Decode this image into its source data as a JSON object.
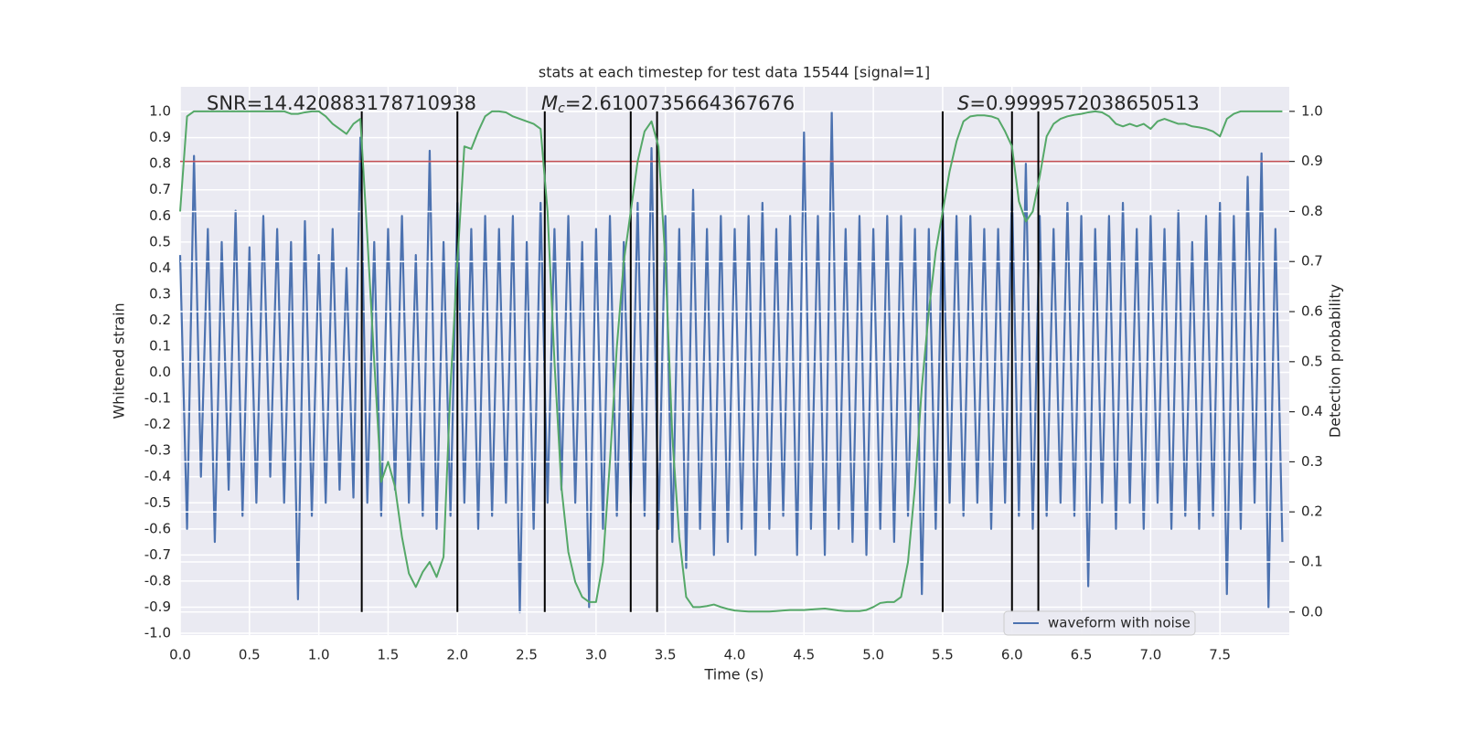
{
  "chart_data": {
    "type": "line",
    "title": "stats at each timestep for test data 15544 [signal=1]",
    "xlabel": "Time (s)",
    "ylabel": "Whitened strain",
    "y2label": "Detection probability",
    "annotations": [
      {
        "text": "SNR=14.420883178710938"
      },
      {
        "symbol": "M",
        "subscript": "c",
        "text": "=2.6100735664367676"
      },
      {
        "symbol": "S",
        "text": "=0.9999572038650513"
      }
    ],
    "x": [
      0.0,
      0.05,
      0.1,
      0.15,
      0.2,
      0.25,
      0.3,
      0.35,
      0.4,
      0.45,
      0.5,
      0.55,
      0.6,
      0.65,
      0.7,
      0.75,
      0.8,
      0.85,
      0.9,
      0.95,
      1.0,
      1.05,
      1.1,
      1.15,
      1.2,
      1.25,
      1.3,
      1.35,
      1.4,
      1.45,
      1.5,
      1.55,
      1.6,
      1.65,
      1.7,
      1.75,
      1.8,
      1.85,
      1.9,
      1.95,
      2.0,
      2.05,
      2.1,
      2.15,
      2.2,
      2.25,
      2.3,
      2.35,
      2.4,
      2.45,
      2.5,
      2.55,
      2.6,
      2.65,
      2.7,
      2.75,
      2.8,
      2.85,
      2.9,
      2.95,
      3.0,
      3.05,
      3.1,
      3.15,
      3.2,
      3.25,
      3.3,
      3.35,
      3.4,
      3.45,
      3.5,
      3.55,
      3.6,
      3.65,
      3.7,
      3.75,
      3.8,
      3.85,
      3.9,
      3.95,
      4.0,
      4.05,
      4.1,
      4.15,
      4.2,
      4.25,
      4.3,
      4.35,
      4.4,
      4.45,
      4.5,
      4.55,
      4.6,
      4.65,
      4.7,
      4.75,
      4.8,
      4.85,
      4.9,
      4.95,
      5.0,
      5.05,
      5.1,
      5.15,
      5.2,
      5.25,
      5.3,
      5.35,
      5.4,
      5.45,
      5.5,
      5.55,
      5.6,
      5.65,
      5.7,
      5.75,
      5.8,
      5.85,
      5.9,
      5.95,
      6.0,
      6.05,
      6.1,
      6.15,
      6.2,
      6.25,
      6.3,
      6.35,
      6.4,
      6.45,
      6.5,
      6.55,
      6.6,
      6.65,
      6.7,
      6.75,
      6.8,
      6.85,
      6.9,
      6.95,
      7.0,
      7.05,
      7.1,
      7.15,
      7.2,
      7.25,
      7.3,
      7.35,
      7.4,
      7.45,
      7.5,
      7.55,
      7.6,
      7.65,
      7.7,
      7.75,
      7.8,
      7.85,
      7.9,
      7.95
    ],
    "series": [
      {
        "name": "waveform with noise",
        "color": "#4c72b0",
        "axis": "y",
        "values": [
          0.45,
          -0.6,
          0.83,
          -0.4,
          0.55,
          -0.65,
          0.5,
          -0.45,
          0.62,
          -0.55,
          0.48,
          -0.5,
          0.6,
          -0.4,
          0.55,
          -0.5,
          0.5,
          -0.87,
          0.58,
          -0.55,
          0.45,
          -0.5,
          0.55,
          -0.45,
          0.4,
          -0.48,
          0.9,
          -0.5,
          0.5,
          -0.55,
          0.55,
          -0.45,
          0.6,
          -0.5,
          0.45,
          -0.55,
          0.85,
          -0.6,
          0.5,
          -0.55,
          0.65,
          -0.5,
          0.55,
          -0.6,
          0.6,
          -0.55,
          0.55,
          -0.5,
          0.6,
          -0.92,
          0.5,
          -0.6,
          0.65,
          -0.5,
          0.55,
          -0.45,
          0.6,
          -0.5,
          0.5,
          -0.9,
          0.55,
          -0.6,
          0.6,
          -0.55,
          0.5,
          -0.5,
          0.65,
          -0.55,
          0.86,
          -0.6,
          0.6,
          -0.65,
          0.55,
          -0.75,
          0.7,
          -0.6,
          0.55,
          -0.7,
          0.6,
          -0.65,
          0.55,
          -0.6,
          0.6,
          -0.7,
          0.65,
          -0.6,
          0.55,
          -0.55,
          0.6,
          -0.7,
          0.92,
          -0.6,
          0.6,
          -0.7,
          1.0,
          -0.6,
          0.55,
          -0.65,
          0.6,
          -0.7,
          0.55,
          -0.6,
          0.6,
          -0.65,
          0.6,
          -0.55,
          0.55,
          -0.85,
          0.55,
          -0.6,
          0.65,
          -0.5,
          0.6,
          -0.55,
          0.6,
          -0.5,
          0.55,
          -0.6,
          0.55,
          -0.5,
          0.7,
          -0.55,
          0.8,
          -0.6,
          0.6,
          -0.55,
          0.55,
          -0.5,
          0.65,
          -0.55,
          0.6,
          -0.82,
          0.55,
          -0.5,
          0.6,
          -0.6,
          0.65,
          -0.5,
          0.55,
          -0.6,
          0.6,
          -0.5,
          0.55,
          -0.6,
          0.62,
          -0.55,
          0.5,
          -0.6,
          0.6,
          -0.55,
          0.65,
          -0.85,
          0.6,
          -0.6,
          0.75,
          -0.5,
          0.84,
          -0.9,
          0.55,
          -0.65
        ]
      },
      {
        "color": "#55a868",
        "axis": "y2",
        "values": [
          0.8,
          0.99,
          1,
          1,
          1,
          1,
          1,
          1,
          1,
          1,
          1,
          1,
          1,
          1,
          1,
          1,
          0.995,
          0.995,
          0.998,
          1.0,
          1.0,
          0.99,
          0.975,
          0.965,
          0.955,
          0.975,
          0.985,
          0.75,
          0.5,
          0.26,
          0.3,
          0.25,
          0.15,
          0.077,
          0.05,
          0.08,
          0.1,
          0.07,
          0.11,
          0.45,
          0.7,
          0.93,
          0.925,
          0.96,
          0.99,
          1.0,
          1.0,
          0.998,
          0.99,
          0.985,
          0.98,
          0.975,
          0.965,
          0.8,
          0.5,
          0.25,
          0.12,
          0.06,
          0.03,
          0.02,
          0.02,
          0.1,
          0.3,
          0.53,
          0.7,
          0.8,
          0.9,
          0.96,
          0.98,
          0.93,
          0.7,
          0.35,
          0.15,
          0.03,
          0.01,
          0.01,
          0.012,
          0.015,
          0.01,
          0.006,
          0.003,
          0.002,
          0.001,
          0.001,
          0.001,
          0.001,
          0.002,
          0.003,
          0.004,
          0.004,
          0.004,
          0.005,
          0.006,
          0.007,
          0.005,
          0.003,
          0.002,
          0.002,
          0.002,
          0.004,
          0.01,
          0.018,
          0.02,
          0.02,
          0.03,
          0.1,
          0.25,
          0.45,
          0.6,
          0.72,
          0.8,
          0.88,
          0.94,
          0.98,
          0.99,
          0.992,
          0.992,
          0.99,
          0.985,
          0.96,
          0.93,
          0.82,
          0.78,
          0.8,
          0.87,
          0.95,
          0.975,
          0.985,
          0.99,
          0.993,
          0.995,
          0.998,
          1.0,
          0.998,
          0.99,
          0.975,
          0.97,
          0.975,
          0.97,
          0.975,
          0.965,
          0.98,
          0.985,
          0.98,
          0.975,
          0.975,
          0.97,
          0.968,
          0.965,
          0.96,
          0.95,
          0.985,
          0.995,
          1,
          1,
          1,
          1,
          1,
          1,
          1
        ]
      }
    ],
    "threshold": {
      "value": 0.9,
      "axis": "y2",
      "color": "#c44e52"
    },
    "event_lines": {
      "x": [
        1.31,
        2.0,
        2.63,
        3.25,
        3.44,
        5.5,
        6.0,
        6.19
      ],
      "ymin": 0,
      "ymax": 1,
      "axis": "y2",
      "color": "#000000"
    },
    "xlim": [
      0,
      8
    ],
    "ylim": [
      -1.007,
      1.095
    ],
    "y2lim": [
      -0.046,
      1.049
    ],
    "xticks": [
      {
        "value": 0,
        "label": "0.0"
      },
      0.5,
      {
        "value": 1,
        "label": "1.0"
      },
      1.5,
      {
        "value": 2,
        "label": "2.0"
      },
      2.5,
      {
        "value": 3,
        "label": "3.0"
      },
      3.5,
      {
        "value": 4,
        "label": "4.0"
      },
      4.5,
      {
        "value": 5,
        "label": "5.0"
      },
      5.5,
      {
        "value": 6,
        "label": "6.0"
      },
      6.5,
      {
        "value": 7,
        "label": "7.0"
      },
      7.5
    ],
    "yticks": [
      {
        "value": -1,
        "label": "-1.0"
      },
      -0.9,
      -0.8,
      -0.7,
      -0.6,
      -0.5,
      -0.4,
      -0.3,
      -0.2,
      -0.1,
      {
        "value": 0,
        "label": "0.0"
      },
      0.1,
      0.2,
      0.3,
      0.4,
      0.5,
      0.6,
      0.7,
      0.8,
      0.9,
      {
        "value": 1,
        "label": "1.0"
      }
    ],
    "y2ticks": [
      {
        "value": 0,
        "label": "0.0"
      },
      0.1,
      0.2,
      0.3,
      0.4,
      0.5,
      0.6,
      0.7,
      0.8,
      0.9,
      {
        "value": 1,
        "label": "1.0"
      }
    ],
    "grid": true,
    "legend": "lower right"
  }
}
